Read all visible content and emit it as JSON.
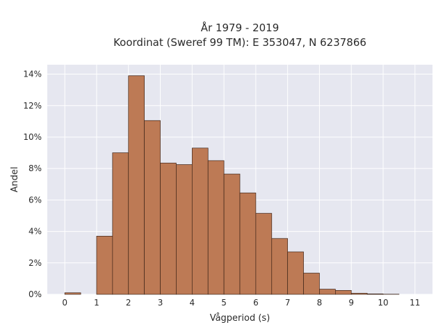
{
  "chart_data": {
    "type": "bar",
    "title_lines": [
      "År 1979 - 2019",
      "Koordinat (Sweref 99 TM): E 353047, N 6237866"
    ],
    "xlabel": "Vågperiod (s)",
    "ylabel": "Andel",
    "bin_width": 0.5,
    "bins": [
      {
        "start": 0.0,
        "value": 0.1
      },
      {
        "start": 0.5,
        "value": 0.0
      },
      {
        "start": 1.0,
        "value": 3.7
      },
      {
        "start": 1.5,
        "value": 9.0
      },
      {
        "start": 2.0,
        "value": 13.9
      },
      {
        "start": 2.5,
        "value": 11.05
      },
      {
        "start": 3.0,
        "value": 8.35
      },
      {
        "start": 3.5,
        "value": 8.25
      },
      {
        "start": 4.0,
        "value": 9.3
      },
      {
        "start": 4.5,
        "value": 8.5
      },
      {
        "start": 5.0,
        "value": 7.65
      },
      {
        "start": 5.5,
        "value": 6.45
      },
      {
        "start": 6.0,
        "value": 5.15
      },
      {
        "start": 6.5,
        "value": 3.55
      },
      {
        "start": 7.0,
        "value": 2.7
      },
      {
        "start": 7.5,
        "value": 1.35
      },
      {
        "start": 8.0,
        "value": 0.33
      },
      {
        "start": 8.5,
        "value": 0.25
      },
      {
        "start": 9.0,
        "value": 0.07
      },
      {
        "start": 9.5,
        "value": 0.03
      },
      {
        "start": 10.0,
        "value": 0.01
      }
    ],
    "x_ticks": [
      "0",
      "1",
      "2",
      "3",
      "4",
      "5",
      "6",
      "7",
      "8",
      "9",
      "10",
      "11"
    ],
    "y_ticks": [
      "0%",
      "2%",
      "4%",
      "6%",
      "8%",
      "10%",
      "12%",
      "14%"
    ],
    "xlim": [
      -0.55,
      11.55
    ],
    "ylim": [
      0,
      14.6
    ],
    "grid": true,
    "colors": {
      "bar_fill": "#bd7a55",
      "bar_stroke": "#3d2418",
      "plot_background": "#e6e7f0",
      "grid": "#ffffff"
    }
  }
}
